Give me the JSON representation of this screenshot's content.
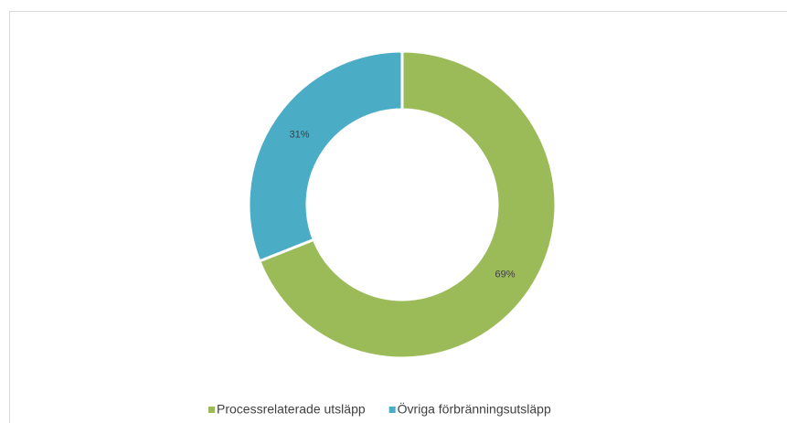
{
  "chart_data": {
    "type": "donut",
    "categories": [
      "Processrelaterade utsläpp",
      "Övriga förbränningsutsläpp"
    ],
    "values": [
      69,
      31
    ],
    "value_labels": [
      "69%",
      "31%"
    ],
    "colors": [
      "#9bbb59",
      "#4bacc6"
    ]
  }
}
